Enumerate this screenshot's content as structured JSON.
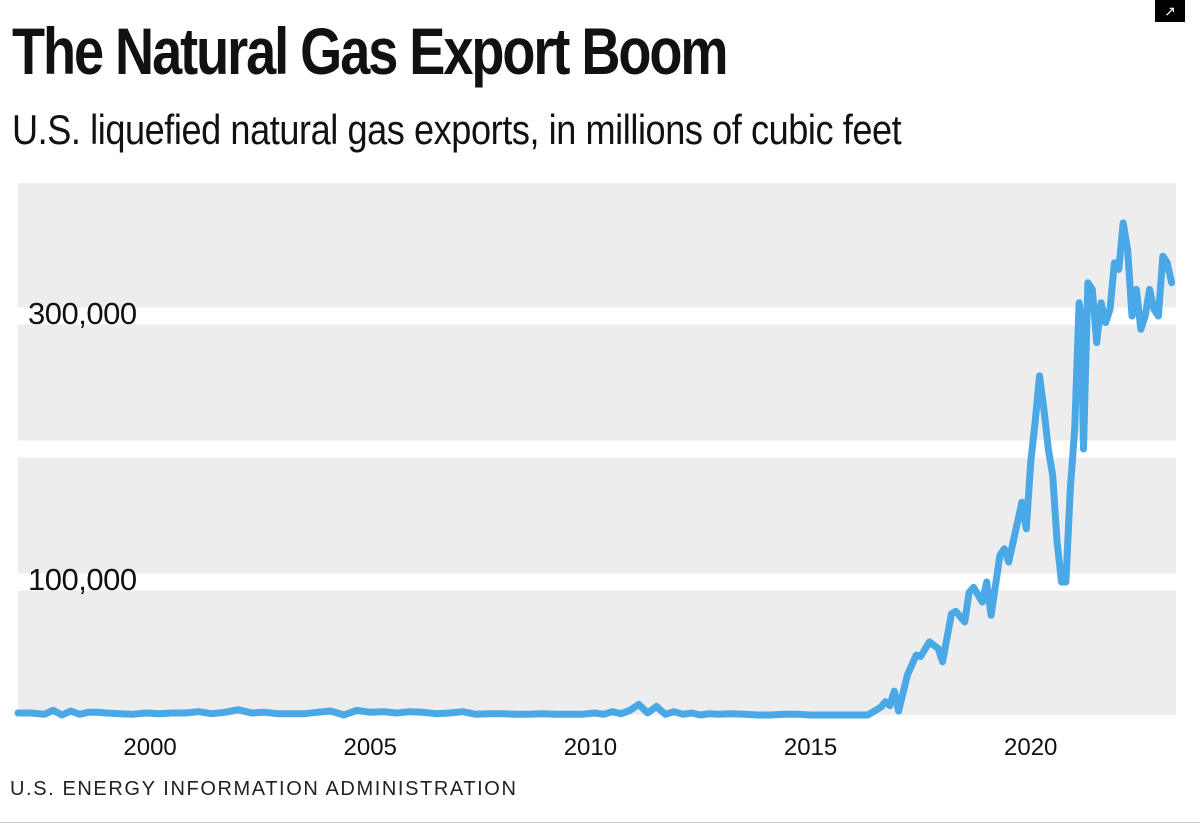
{
  "header": {
    "title": "The Natural Gas Export Boom",
    "subtitle": "U.S. liquefied natural gas exports, in millions of cubic feet",
    "corner_icon": "expand-icon"
  },
  "footer": {
    "source": "U.S. ENERGY INFORMATION ADMINISTRATION"
  },
  "colors": {
    "line": "#4aa8e6",
    "band": "#eeedee",
    "background": "#ffffff",
    "text": "#111111"
  },
  "chart_data": {
    "type": "line",
    "title": "The Natural Gas Export Boom",
    "subtitle": "U.S. liquefied natural gas exports, in millions of cubic feet",
    "xlabel": "",
    "ylabel": "",
    "xlim": [
      1997,
      2023.3
    ],
    "ylim": [
      0,
      400000
    ],
    "y_ticks": [
      100000,
      300000
    ],
    "y_tick_labels": [
      "100,000",
      "300,000"
    ],
    "x_ticks": [
      2000,
      2005,
      2010,
      2015,
      2020
    ],
    "x_tick_labels": [
      "2000",
      "2005",
      "2010",
      "2015",
      "2020"
    ],
    "grid": "alternating horizontal bands",
    "series": [
      {
        "name": "U.S. LNG exports",
        "x": [
          1997.0,
          1997.3,
          1997.6,
          1997.8,
          1998.0,
          1998.2,
          1998.4,
          1998.6,
          1998.8,
          1999.0,
          1999.3,
          1999.6,
          1999.9,
          2000.2,
          2000.5,
          2000.8,
          2001.1,
          2001.4,
          2001.7,
          2002.0,
          2002.3,
          2002.6,
          2002.9,
          2003.2,
          2003.5,
          2003.8,
          2004.1,
          2004.4,
          2004.7,
          2005.0,
          2005.3,
          2005.6,
          2005.9,
          2006.2,
          2006.5,
          2006.8,
          2007.1,
          2007.4,
          2007.7,
          2008.0,
          2008.3,
          2008.6,
          2008.9,
          2009.2,
          2009.5,
          2009.8,
          2010.1,
          2010.3,
          2010.5,
          2010.7,
          2010.9,
          2011.1,
          2011.3,
          2011.5,
          2011.7,
          2011.9,
          2012.1,
          2012.3,
          2012.5,
          2012.7,
          2012.9,
          2013.2,
          2013.5,
          2013.8,
          2014.1,
          2014.4,
          2014.7,
          2015.0,
          2015.3,
          2015.6,
          2015.9,
          2016.1,
          2016.3,
          2016.5,
          2016.6,
          2016.7,
          2016.8,
          2016.9,
          2017.0,
          2017.2,
          2017.4,
          2017.5,
          2017.7,
          2017.9,
          2018.0,
          2018.2,
          2018.3,
          2018.5,
          2018.6,
          2018.7,
          2018.9,
          2019.0,
          2019.1,
          2019.3,
          2019.4,
          2019.5,
          2019.7,
          2019.8,
          2019.9,
          2020.0,
          2020.1,
          2020.2,
          2020.3,
          2020.4,
          2020.5,
          2020.6,
          2020.7,
          2020.8,
          2020.9,
          2021.0,
          2021.1,
          2021.15,
          2021.2,
          2021.3,
          2021.4,
          2021.5,
          2021.6,
          2021.7,
          2021.8,
          2021.9,
          2022.0,
          2022.1,
          2022.2,
          2022.3,
          2022.4,
          2022.5,
          2022.6,
          2022.7,
          2022.8,
          2022.9,
          2023.0,
          2023.1,
          2023.2
        ],
        "values": [
          1500,
          1500,
          500,
          3500,
          0,
          3000,
          500,
          2000,
          2000,
          1500,
          1000,
          500,
          1500,
          1000,
          1500,
          1500,
          2500,
          1000,
          2000,
          4000,
          1500,
          2000,
          1000,
          1000,
          1000,
          2000,
          3000,
          0,
          3500,
          2000,
          2500,
          1500,
          2500,
          2000,
          1000,
          1500,
          2500,
          500,
          1000,
          1000,
          500,
          500,
          1000,
          500,
          500,
          500,
          1500,
          500,
          2500,
          1000,
          3500,
          8000,
          1500,
          6500,
          500,
          2500,
          500,
          1500,
          0,
          1000,
          500,
          1000,
          500,
          0,
          0,
          500,
          500,
          0,
          0,
          0,
          0,
          0,
          0,
          4000,
          6000,
          10000,
          7000,
          18000,
          3000,
          30000,
          45000,
          44000,
          55000,
          50000,
          40000,
          76000,
          78000,
          70000,
          92000,
          96000,
          85000,
          100000,
          75000,
          120000,
          125000,
          115000,
          145000,
          160000,
          140000,
          190000,
          220000,
          255000,
          230000,
          200000,
          180000,
          130000,
          100000,
          100000,
          170000,
          215000,
          310000,
          300000,
          200000,
          325000,
          320000,
          280000,
          310000,
          295000,
          305000,
          340000,
          335000,
          370000,
          350000,
          300000,
          320000,
          290000,
          300000,
          320000,
          305000,
          300000,
          345000,
          340000,
          325000
        ]
      }
    ]
  }
}
